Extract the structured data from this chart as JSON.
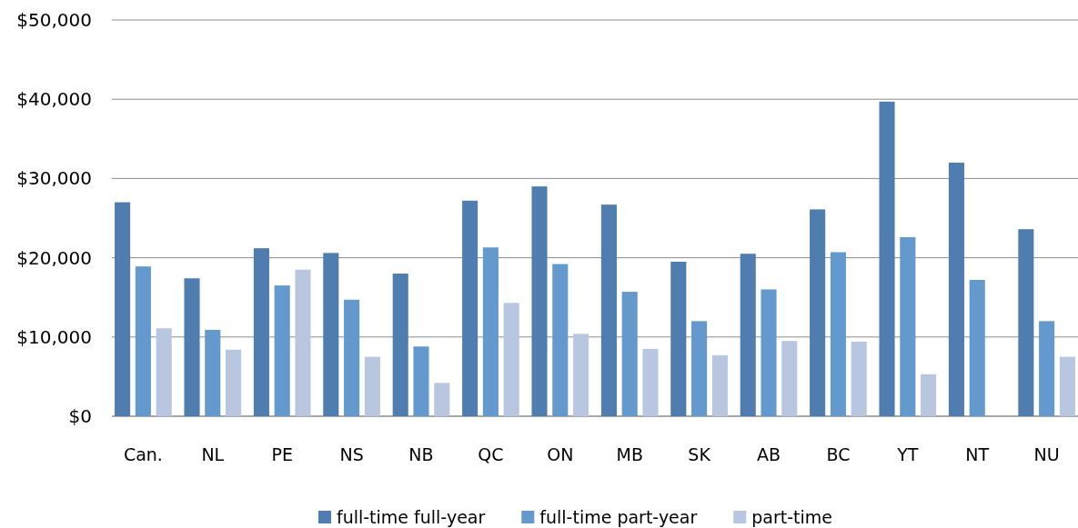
{
  "chart_data": {
    "type": "bar",
    "categories": [
      "Can.",
      "NL",
      "PE",
      "NS",
      "NB",
      "QC",
      "ON",
      "MB",
      "SK",
      "AB",
      "BC",
      "YT",
      "NT",
      "NU"
    ],
    "series": [
      {
        "name": "full-time full-year",
        "color": "#4f7db0",
        "values": [
          27000,
          17400,
          21200,
          20600,
          18000,
          27200,
          29000,
          26700,
          19500,
          20500,
          26100,
          39700,
          32000,
          23600
        ]
      },
      {
        "name": "full-time part-year",
        "color": "#6399cc",
        "values": [
          18900,
          10900,
          16500,
          14700,
          8800,
          21300,
          19200,
          15700,
          12000,
          16000,
          20700,
          22600,
          17200,
          12000
        ]
      },
      {
        "name": "part-time",
        "color": "#b9c6e0",
        "values": [
          11100,
          8400,
          18500,
          7500,
          4200,
          14300,
          10400,
          8500,
          7700,
          9500,
          9400,
          5300,
          null,
          7500
        ]
      }
    ],
    "ylim": [
      0,
      50000
    ],
    "yticks": [
      {
        "value": 0,
        "label": "$0"
      },
      {
        "value": 10000,
        "label": "$10,000"
      },
      {
        "value": 20000,
        "label": "$20,000"
      },
      {
        "value": 30000,
        "label": "$30,000"
      },
      {
        "value": 40000,
        "label": "$40,000"
      },
      {
        "value": 50000,
        "label": "$50,000"
      }
    ],
    "grid": "y",
    "legend": "bottom"
  }
}
